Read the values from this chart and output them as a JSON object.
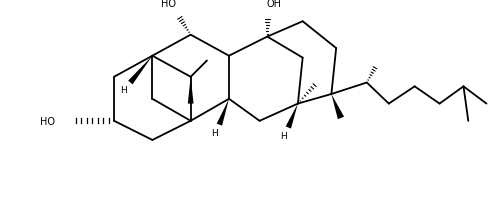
{
  "bg_color": "#ffffff",
  "line_color": "#000000",
  "lw": 1.3,
  "fig_width": 5.01,
  "fig_height": 2.07,
  "dpi": 100,
  "xlim": [
    0,
    501
  ],
  "ylim": [
    0,
    207
  ]
}
